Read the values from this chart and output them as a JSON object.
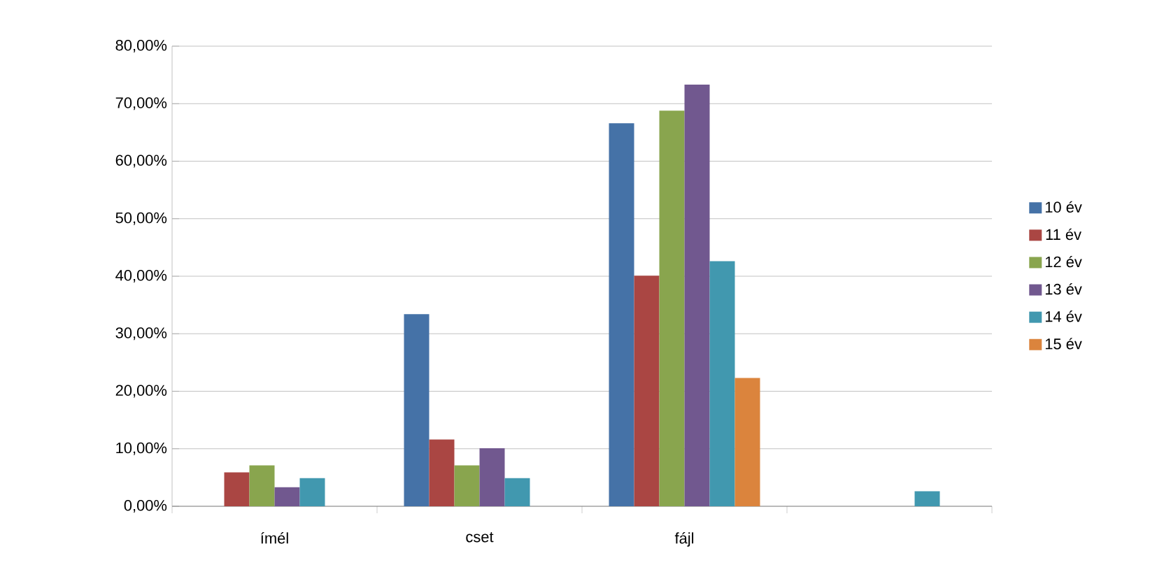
{
  "chart_data": {
    "type": "bar",
    "categories": [
      "ímél",
      "cset",
      "fájl",
      null
    ],
    "series": [
      {
        "name": "10 év",
        "color": "#4572a7",
        "values": [
          0,
          33.4,
          66.6,
          0
        ]
      },
      {
        "name": "11 év",
        "color": "#aa4643",
        "values": [
          5.9,
          11.6,
          40.1,
          0
        ]
      },
      {
        "name": "12 év",
        "color": "#89a54e",
        "values": [
          7.1,
          7.1,
          68.8,
          0
        ]
      },
      {
        "name": "13 év",
        "color": "#71588f",
        "values": [
          3.3,
          10.1,
          73.3,
          0
        ]
      },
      {
        "name": "14 év",
        "color": "#4198af",
        "values": [
          4.9,
          4.9,
          42.6,
          2.6
        ]
      },
      {
        "name": "15 év",
        "color": "#db843d",
        "values": [
          0,
          0,
          22.3,
          0
        ]
      }
    ],
    "ylim": [
      0,
      80
    ],
    "yticks": [
      {
        "value": 0,
        "label": "0,00%"
      },
      {
        "value": 10,
        "label": "10,00%"
      },
      {
        "value": 20,
        "label": "20,00%"
      },
      {
        "value": 30,
        "label": "30,00%"
      },
      {
        "value": 40,
        "label": "40,00%"
      },
      {
        "value": 50,
        "label": "50,00%"
      },
      {
        "value": 60,
        "label": "60,00%"
      },
      {
        "value": 70,
        "label": "70,00%"
      },
      {
        "value": 80,
        "label": "80,00%"
      }
    ],
    "grid": "y",
    "legend": "right"
  }
}
